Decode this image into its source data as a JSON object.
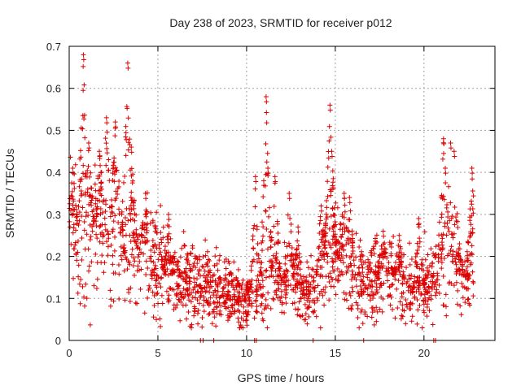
{
  "chart_data": {
    "type": "scatter",
    "marker": "plus",
    "title": "Day 238 of 2023, SRMTID for receiver p012",
    "xlabel": "GPS time / hours",
    "ylabel": "SRMTID / TECUs",
    "xlim": [
      0,
      24
    ],
    "ylim": [
      0,
      0.7
    ],
    "xticks": [
      0,
      5,
      10,
      15,
      20
    ],
    "yticks": [
      0,
      0.1,
      0.2,
      0.3,
      0.4,
      0.5,
      0.6,
      0.7
    ],
    "xtick_labels": [
      "0",
      "5",
      "10",
      "15",
      "20"
    ],
    "ytick_labels": [
      "0",
      "0.1",
      "0.2",
      "0.3",
      "0.4",
      "0.5",
      "0.6",
      "0.7"
    ],
    "grid": true,
    "color": "#dd0000",
    "trend_x": [
      0,
      0.5,
      1,
      1.5,
      2,
      2.5,
      3,
      3.5,
      4,
      4.5,
      5,
      5.5,
      6,
      6.5,
      7,
      7.5,
      8,
      8.5,
      9,
      9.5,
      10,
      10.5,
      11,
      11.5,
      12,
      12.5,
      13,
      13.5,
      14,
      14.5,
      15,
      15.5,
      16,
      16.5,
      17,
      17.5,
      18,
      18.5,
      19,
      19.5,
      20,
      20.5,
      21,
      21.5,
      22,
      22.5,
      22.8
    ],
    "trend_y": [
      0.26,
      0.25,
      0.27,
      0.26,
      0.25,
      0.24,
      0.23,
      0.23,
      0.21,
      0.2,
      0.18,
      0.16,
      0.15,
      0.14,
      0.14,
      0.13,
      0.13,
      0.12,
      0.11,
      0.1,
      0.09,
      0.1,
      0.12,
      0.13,
      0.13,
      0.13,
      0.11,
      0.11,
      0.14,
      0.18,
      0.2,
      0.18,
      0.15,
      0.15,
      0.15,
      0.16,
      0.16,
      0.15,
      0.12,
      0.11,
      0.13,
      0.15,
      0.17,
      0.17,
      0.15,
      0.15,
      0.15
    ],
    "bursts": [
      {
        "x": 0.2,
        "peak": 0.41
      },
      {
        "x": 0.8,
        "peak": 0.68
      },
      {
        "x": 1.1,
        "peak": 0.47
      },
      {
        "x": 1.7,
        "peak": 0.45
      },
      {
        "x": 2.1,
        "peak": 0.53
      },
      {
        "x": 2.6,
        "peak": 0.52
      },
      {
        "x": 3.3,
        "peak": 0.66
      },
      {
        "x": 3.5,
        "peak": 0.46
      },
      {
        "x": 4.3,
        "peak": 0.35
      },
      {
        "x": 5.6,
        "peak": 0.3
      },
      {
        "x": 10.5,
        "peak": 0.39
      },
      {
        "x": 11.1,
        "peak": 0.58
      },
      {
        "x": 11.2,
        "peak": 0.41
      },
      {
        "x": 11.6,
        "peak": 0.39
      },
      {
        "x": 12.4,
        "peak": 0.35
      },
      {
        "x": 12.9,
        "peak": 0.27
      },
      {
        "x": 14.2,
        "peak": 0.32
      },
      {
        "x": 14.7,
        "peak": 0.56
      },
      {
        "x": 14.8,
        "peak": 0.45
      },
      {
        "x": 15.5,
        "peak": 0.35
      },
      {
        "x": 15.8,
        "peak": 0.34
      },
      {
        "x": 17.7,
        "peak": 0.26
      },
      {
        "x": 18.6,
        "peak": 0.25
      },
      {
        "x": 19.7,
        "peak": 0.29
      },
      {
        "x": 21.1,
        "peak": 0.48
      },
      {
        "x": 21.2,
        "peak": 0.41
      },
      {
        "x": 21.5,
        "peak": 0.47
      },
      {
        "x": 21.7,
        "peak": 0.45
      },
      {
        "x": 22.0,
        "peak": 0.23
      },
      {
        "x": 22.7,
        "peak": 0.41
      }
    ],
    "zero_markers_x": [
      7.4,
      7.55,
      8.15,
      10.45,
      10.55,
      13.75,
      16.6,
      20.55,
      20.65
    ],
    "point_count": 2200,
    "x_end": 22.8
  }
}
